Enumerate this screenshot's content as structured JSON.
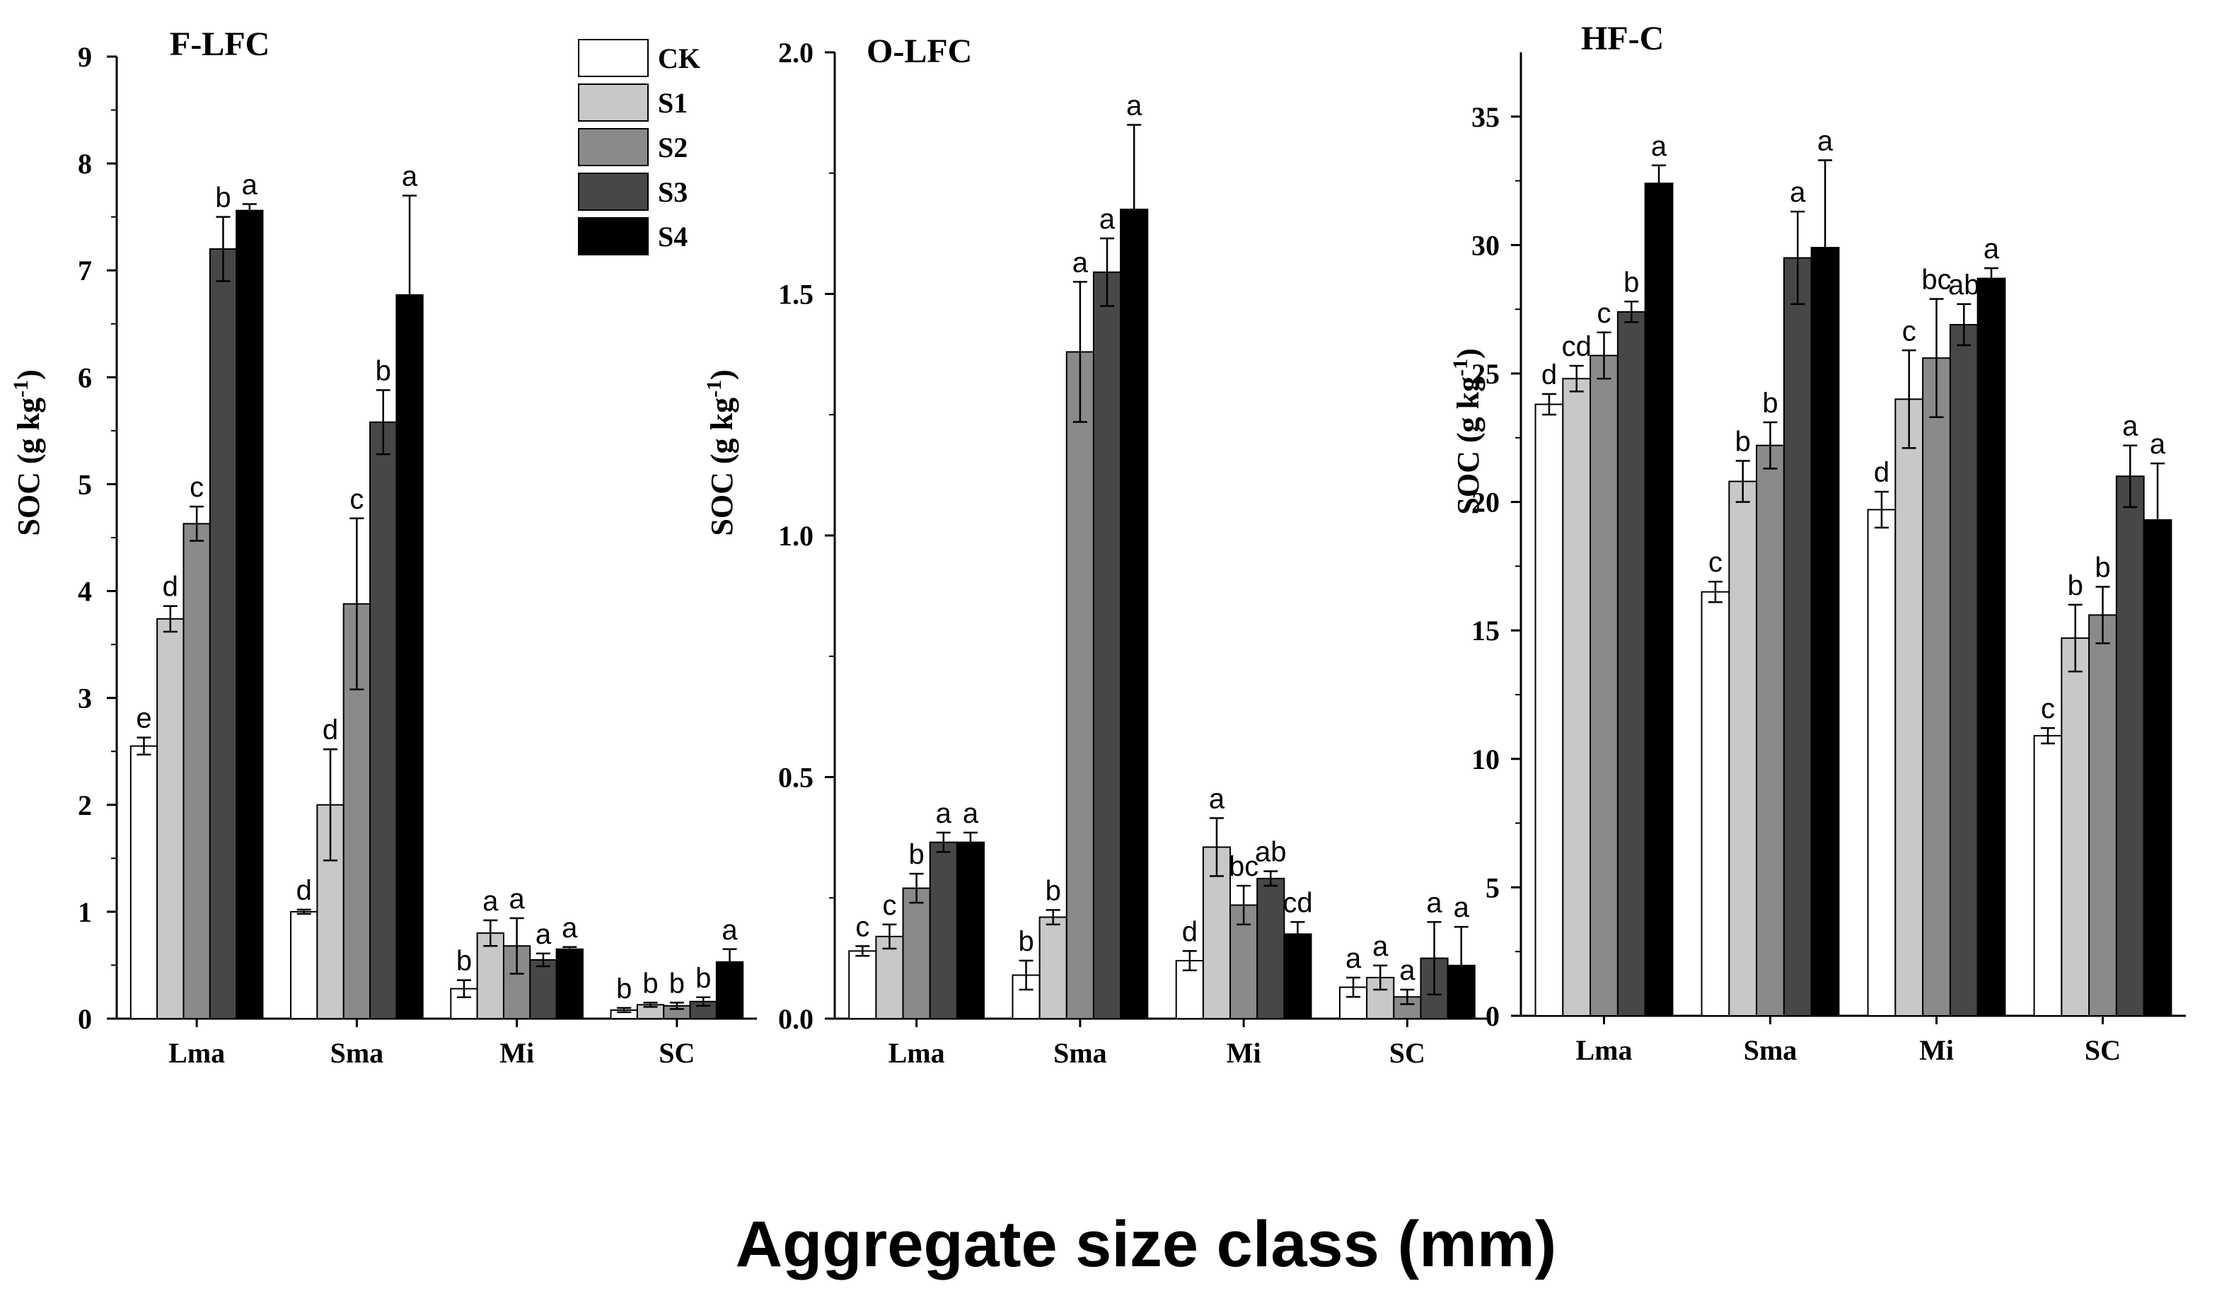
{
  "figure": {
    "xlabel": "Aggregate size class (mm)"
  },
  "chart_data": [
    {
      "type": "bar",
      "title": "F-LFC",
      "ylabel_main": "SOC (g kg",
      "ylabel_sup": "-1",
      "ylabel_tail": ")",
      "xlabel": "Aggregate size class (mm)",
      "categories": [
        "Lma",
        "Sma",
        "Mi",
        "SC"
      ],
      "ylim": [
        0,
        9
      ],
      "yticks": [
        0,
        1,
        2,
        3,
        4,
        5,
        6,
        7,
        8,
        9
      ],
      "ytick_labels": [
        "0",
        "1",
        "2",
        "3",
        "4",
        "5",
        "6",
        "7",
        "8",
        "9"
      ],
      "legend": [
        "CK",
        "S1",
        "S2",
        "S3",
        "S4"
      ],
      "legend_position": "top-right",
      "series": [
        {
          "name": "CK",
          "color": "#ffffff",
          "values": [
            2.55,
            1.0,
            0.28,
            0.08
          ],
          "errors": [
            0.08,
            0.02,
            0.08,
            0.02
          ],
          "labels": [
            "e",
            "d",
            "b",
            "b"
          ]
        },
        {
          "name": "S1",
          "color": "#c8c8c8",
          "values": [
            3.74,
            2.0,
            0.8,
            0.13
          ],
          "errors": [
            0.12,
            0.52,
            0.12,
            0.02
          ],
          "labels": [
            "d",
            "d",
            "a",
            "b"
          ]
        },
        {
          "name": "S2",
          "color": "#8a8a8a",
          "values": [
            4.63,
            3.88,
            0.68,
            0.12
          ],
          "errors": [
            0.16,
            0.8,
            0.26,
            0.03
          ],
          "labels": [
            "c",
            "c",
            "a",
            "b"
          ]
        },
        {
          "name": "S3",
          "color": "#474747",
          "values": [
            7.2,
            5.58,
            0.55,
            0.16
          ],
          "errors": [
            0.3,
            0.3,
            0.06,
            0.04
          ],
          "labels": [
            "b",
            "b",
            "a",
            "b"
          ]
        },
        {
          "name": "S4",
          "color": "#000000",
          "values": [
            7.56,
            6.77,
            0.65,
            0.53
          ],
          "errors": [
            0.06,
            0.93,
            0.02,
            0.12
          ],
          "labels": [
            "a",
            "a",
            "a",
            "a"
          ]
        }
      ]
    },
    {
      "type": "bar",
      "title": "O-LFC",
      "ylabel_main": "SOC (g kg",
      "ylabel_sup": "-1",
      "ylabel_tail": ")",
      "xlabel": "Aggregate size class (mm)",
      "categories": [
        "Lma",
        "Sma",
        "Mi",
        "SC"
      ],
      "ylim": [
        0,
        2.0
      ],
      "yticks": [
        0,
        0.5,
        1.0,
        1.5,
        2.0
      ],
      "ytick_labels": [
        "0.0",
        "0.5",
        "1.0",
        "1.5",
        "2.0"
      ],
      "series": [
        {
          "name": "CK",
          "color": "#ffffff",
          "values": [
            0.14,
            0.09,
            0.12,
            0.065
          ],
          "errors": [
            0.01,
            0.03,
            0.02,
            0.02
          ],
          "labels": [
            "c",
            "b",
            "d",
            "a"
          ]
        },
        {
          "name": "S1",
          "color": "#c8c8c8",
          "values": [
            0.17,
            0.21,
            0.355,
            0.085
          ],
          "errors": [
            0.025,
            0.015,
            0.06,
            0.025
          ],
          "labels": [
            "c",
            "b",
            "a",
            "a"
          ]
        },
        {
          "name": "S2",
          "color": "#8a8a8a",
          "values": [
            0.27,
            1.38,
            0.235,
            0.045
          ],
          "errors": [
            0.03,
            0.145,
            0.04,
            0.015
          ],
          "labels": [
            "b",
            "a",
            "bc",
            "a"
          ]
        },
        {
          "name": "S3",
          "color": "#474747",
          "values": [
            0.365,
            1.545,
            0.29,
            0.125
          ],
          "errors": [
            0.02,
            0.07,
            0.015,
            0.075
          ],
          "labels": [
            "a",
            "a",
            "ab",
            "a"
          ]
        },
        {
          "name": "S4",
          "color": "#000000",
          "values": [
            0.365,
            1.675,
            0.175,
            0.11
          ],
          "errors": [
            0.02,
            0.175,
            0.025,
            0.08
          ],
          "labels": [
            "a",
            "a",
            "cd",
            "a"
          ]
        }
      ]
    },
    {
      "type": "bar",
      "title": "HF-C",
      "ylabel_main": "SOC (g kg",
      "ylabel_sup": "-1",
      "ylabel_tail": ")",
      "xlabel": "Aggregate size class (mm)",
      "categories": [
        "Lma",
        "Sma",
        "Mi",
        "SC"
      ],
      "ylim": [
        0,
        37.5
      ],
      "yticks": [
        0,
        5,
        10,
        15,
        20,
        25,
        30,
        35
      ],
      "ytick_labels": [
        "0",
        "5",
        "10",
        "15",
        "20",
        "25",
        "30",
        "35"
      ],
      "series": [
        {
          "name": "CK",
          "color": "#ffffff",
          "values": [
            23.8,
            16.5,
            19.7,
            10.9
          ],
          "errors": [
            0.4,
            0.4,
            0.7,
            0.3
          ],
          "labels": [
            "d",
            "c",
            "d",
            "c"
          ]
        },
        {
          "name": "S1",
          "color": "#c8c8c8",
          "values": [
            24.8,
            20.8,
            24.0,
            14.7
          ],
          "errors": [
            0.5,
            0.8,
            1.9,
            1.3
          ],
          "labels": [
            "cd",
            "b",
            "c",
            "b"
          ]
        },
        {
          "name": "S2",
          "color": "#8a8a8a",
          "values": [
            25.7,
            22.2,
            25.6,
            15.6
          ],
          "errors": [
            0.9,
            0.9,
            2.3,
            1.1
          ],
          "labels": [
            "c",
            "b",
            "bc",
            "b"
          ]
        },
        {
          "name": "S3",
          "color": "#474747",
          "values": [
            27.4,
            29.5,
            26.9,
            21.0
          ],
          "errors": [
            0.4,
            1.8,
            0.8,
            1.2
          ],
          "labels": [
            "b",
            "a",
            "ab",
            "a"
          ]
        },
        {
          "name": "S4",
          "color": "#000000",
          "values": [
            32.4,
            29.9,
            28.7,
            19.3
          ],
          "errors": [
            0.7,
            3.4,
            0.4,
            2.2
          ],
          "labels": [
            "a",
            "a",
            "a",
            "a"
          ]
        }
      ]
    }
  ]
}
